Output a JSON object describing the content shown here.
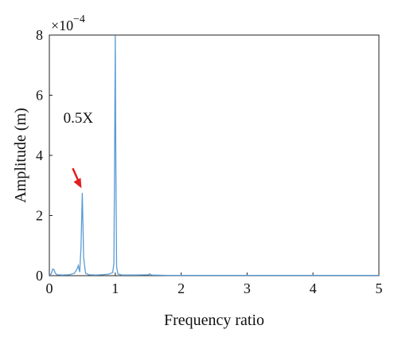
{
  "chart_data": {
    "type": "line",
    "xlabel": "Frequency ratio",
    "ylabel": "Amplitude (m)",
    "y_exponent_label": "×10",
    "y_exponent_power": "−4",
    "xlim": [
      0,
      5
    ],
    "ylim": [
      0,
      8
    ],
    "x_ticks": [
      "0",
      "1",
      "2",
      "3",
      "4",
      "5"
    ],
    "y_ticks": [
      "0",
      "2",
      "4",
      "6",
      "8"
    ],
    "grid": false,
    "series": [
      {
        "color": "#5a9bd5",
        "x": [
          0.0,
          0.03,
          0.05,
          0.07,
          0.09,
          0.12,
          0.2,
          0.3,
          0.38,
          0.42,
          0.44,
          0.46,
          0.48,
          0.5,
          0.52,
          0.55,
          0.6,
          0.7,
          0.8,
          0.9,
          0.96,
          0.98,
          0.99,
          1.0,
          1.01,
          1.02,
          1.04,
          1.1,
          1.3,
          1.5,
          1.52,
          1.55,
          1.8,
          2.0,
          2.5,
          3.0,
          3.5,
          4.0,
          4.5,
          5.0
        ],
        "y": [
          0.02,
          0.06,
          0.22,
          0.2,
          0.08,
          0.03,
          0.02,
          0.03,
          0.08,
          0.22,
          0.34,
          0.12,
          0.9,
          2.75,
          0.6,
          0.08,
          0.03,
          0.02,
          0.03,
          0.05,
          0.1,
          0.4,
          4.0,
          7.98,
          3.5,
          0.3,
          0.06,
          0.02,
          0.02,
          0.03,
          0.06,
          0.02,
          0.01,
          0.01,
          0.01,
          0.01,
          0.01,
          0.01,
          0.01,
          0.01
        ]
      }
    ],
    "annotations": [
      {
        "text": "0.5X",
        "x": 0.5,
        "y": 2.75,
        "color": "#e02020"
      }
    ]
  }
}
